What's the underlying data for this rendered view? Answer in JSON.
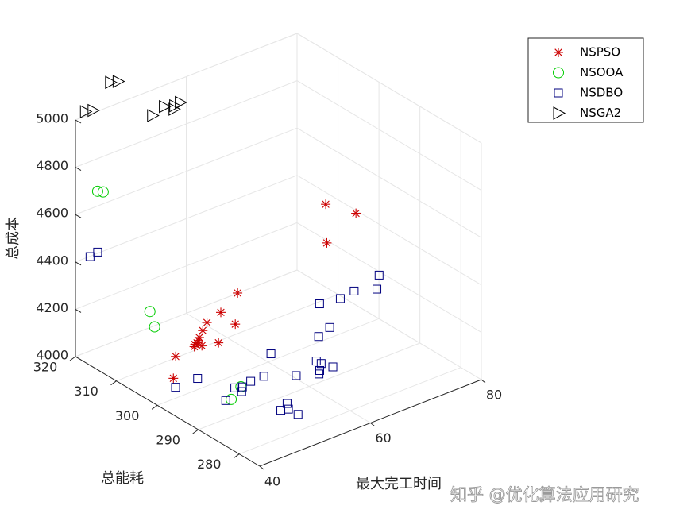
{
  "watermark": "知乎 @优化算法应用研究",
  "chart_data": {
    "type": "scatter3d",
    "title": "",
    "xlabel": "最大完工时间",
    "ylabel": "总能耗",
    "zlabel": "总成本",
    "xlim": [
      40,
      80
    ],
    "ylim": [
      275,
      320
    ],
    "zlim": [
      4000,
      5000
    ],
    "xticks": [
      "40",
      "60",
      "80"
    ],
    "yticks": [
      "280",
      "290",
      "300",
      "310",
      "320"
    ],
    "zticks": [
      "4000",
      "4200",
      "4400",
      "4600",
      "4800",
      "5000"
    ],
    "grid": true,
    "legend": "top-right",
    "series": [
      {
        "name": "NSPSO",
        "marker": "star",
        "color": "#cc0000",
        "points": [
          [
            44.0,
            301.5,
            4062
          ],
          [
            47.0,
            305.0,
            4091
          ],
          [
            50.0,
            304.5,
            4110
          ],
          [
            50.5,
            305.0,
            4110
          ],
          [
            51.0,
            304.0,
            4110
          ],
          [
            51.5,
            305.5,
            4112
          ],
          [
            51.0,
            305.2,
            4110
          ],
          [
            52.0,
            306.0,
            4115
          ],
          [
            53.0,
            306.5,
            4130
          ],
          [
            54.0,
            304.0,
            4095
          ],
          [
            54.5,
            307.5,
            4140
          ],
          [
            57.0,
            307.5,
            4160
          ],
          [
            58.5,
            306.0,
            4112
          ],
          [
            61.5,
            309.5,
            4180
          ],
          [
            76.5,
            308.0,
            4270
          ],
          [
            80.0,
            313.0,
            4350
          ],
          [
            82.5,
            309.0,
            4330
          ]
        ]
      },
      {
        "name": "NSOOA",
        "marker": "circle",
        "color": "#00cc00",
        "points": [
          [
            44.0,
            320.0,
            4662
          ],
          [
            45.0,
            320.0,
            4650
          ],
          [
            48.0,
            311.5,
            4140
          ],
          [
            49.0,
            314.0,
            4170
          ],
          [
            50.0,
            295.5,
            3980
          ],
          [
            52.5,
            296.5,
            4000
          ]
        ]
      },
      {
        "name": "NSDBO",
        "marker": "square",
        "color": "#00007f",
        "points": [
          [
            43.0,
            320.5,
            4390
          ],
          [
            44.0,
            320.0,
            4405
          ],
          [
            45.5,
            303.0,
            3995
          ],
          [
            48.0,
            301.0,
            4030
          ],
          [
            50.5,
            297.5,
            3950
          ],
          [
            52.5,
            298.0,
            3980
          ],
          [
            53.5,
            297.5,
            3980
          ],
          [
            53.0,
            297.0,
            3970
          ],
          [
            55.0,
            297.5,
            3990
          ],
          [
            57.0,
            297.0,
            3998
          ],
          [
            60.5,
            300.0,
            4030
          ],
          [
            61.0,
            294.5,
            3990
          ],
          [
            56.0,
            291.5,
            3920
          ],
          [
            57.0,
            291.0,
            3921
          ],
          [
            57.5,
            292.0,
            3930
          ],
          [
            58.0,
            290.0,
            3900
          ],
          [
            65.0,
            295.0,
            4010
          ],
          [
            64.0,
            293.0,
            3985
          ],
          [
            64.5,
            293.5,
            3990
          ],
          [
            65.5,
            294.5,
            4000
          ],
          [
            66.5,
            293.0,
            3992
          ],
          [
            68.0,
            298.5,
            4050
          ],
          [
            70.0,
            298.5,
            4070
          ],
          [
            71.5,
            303.0,
            4110
          ],
          [
            74.5,
            302.0,
            4115
          ],
          [
            77.0,
            302.0,
            4124
          ],
          [
            80.0,
            300.5,
            4120
          ],
          [
            81.5,
            302.0,
            4150
          ]
        ]
      },
      {
        "name": "NSGA2",
        "marker": "triangle-right",
        "color": "#000000",
        "points": [
          [
            42.5,
            321.0,
            5002
          ],
          [
            43.5,
            320.5,
            5003
          ],
          [
            48.5,
            323.0,
            5050
          ],
          [
            49.5,
            322.5,
            5050
          ],
          [
            53.5,
            319.5,
            4900
          ],
          [
            56.0,
            320.0,
            4910
          ],
          [
            57.0,
            319.0,
            4900
          ],
          [
            57.5,
            319.5,
            4905
          ],
          [
            58.5,
            319.5,
            4910
          ]
        ]
      }
    ]
  }
}
